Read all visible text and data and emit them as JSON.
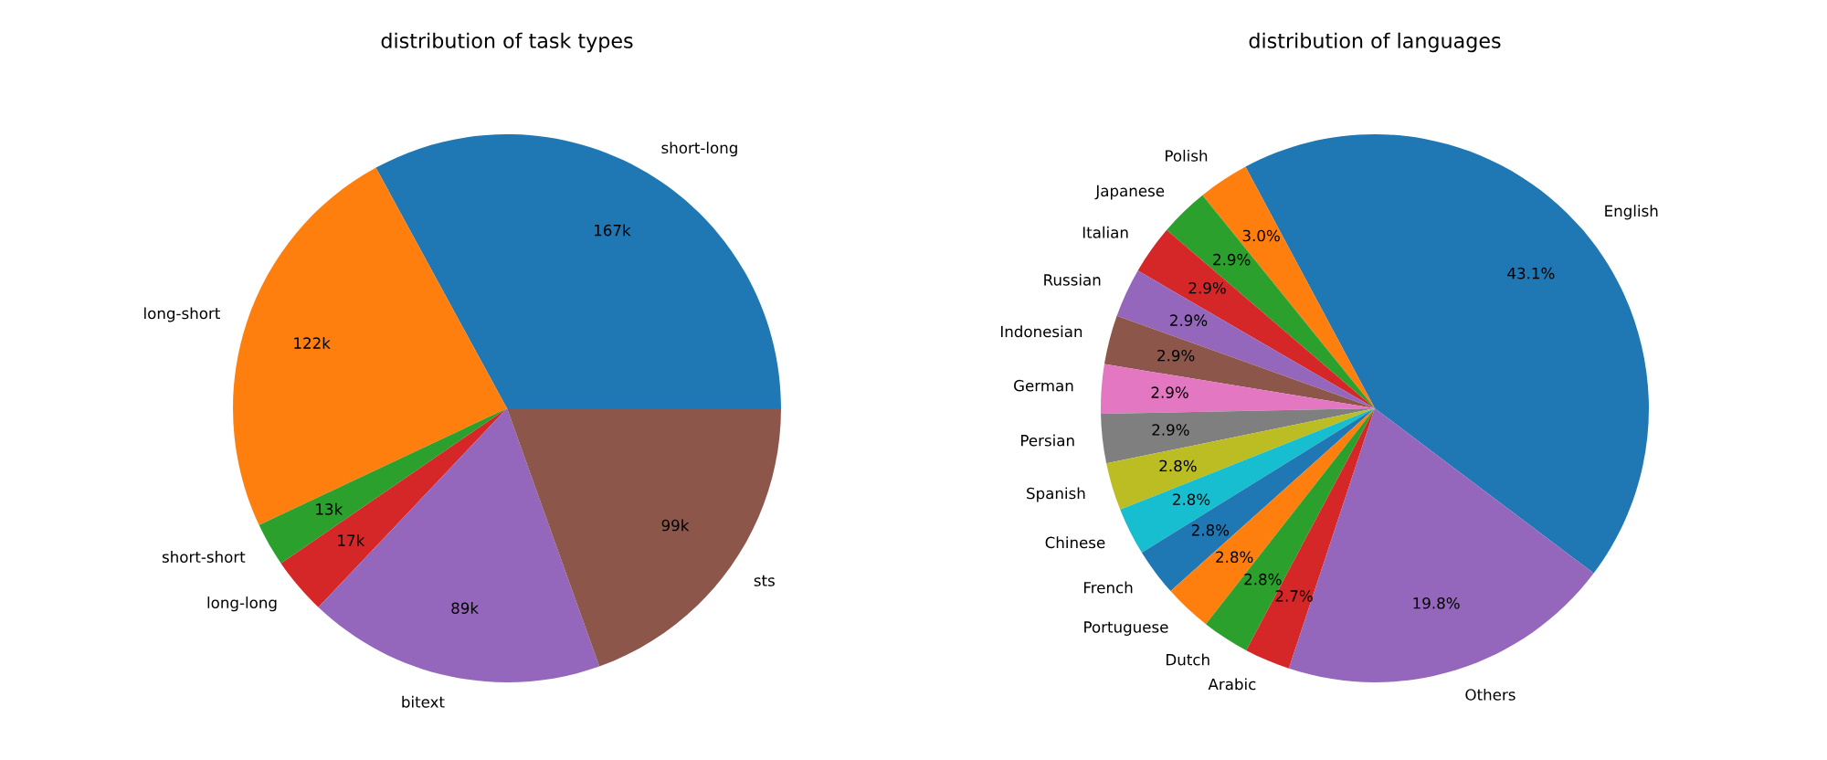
{
  "chart_data": [
    {
      "type": "pie",
      "title": "distribution of task types",
      "categories": [
        "short-long",
        "long-short",
        "short-short",
        "long-long",
        "bitext",
        "sts"
      ],
      "values": [
        167,
        122,
        13,
        17,
        89,
        99
      ],
      "value_labels": [
        "167k",
        "122k",
        "13k",
        "17k",
        "89k",
        "99k"
      ],
      "colors": [
        "#1f77b4",
        "#ff7f0e",
        "#2ca02c",
        "#d62728",
        "#9467bd",
        "#8c564b"
      ]
    },
    {
      "type": "pie",
      "title": "distribution of languages",
      "categories": [
        "English",
        "Polish",
        "Japanese",
        "Italian",
        "Russian",
        "Indonesian",
        "German",
        "Persian",
        "Spanish",
        "Chinese",
        "French",
        "Portuguese",
        "Dutch",
        "Arabic",
        "Others"
      ],
      "values": [
        43.1,
        3.0,
        2.9,
        2.9,
        2.9,
        2.9,
        2.9,
        2.9,
        2.8,
        2.8,
        2.8,
        2.8,
        2.8,
        2.7,
        19.8
      ],
      "value_labels": [
        "43.1%",
        "3.0%",
        "2.9%",
        "2.9%",
        "2.9%",
        "2.9%",
        "2.9%",
        "2.9%",
        "2.8%",
        "2.8%",
        "2.8%",
        "2.8%",
        "2.8%",
        "2.7%",
        "19.8%"
      ],
      "colors": [
        "#1f77b4",
        "#ff7f0e",
        "#2ca02c",
        "#d62728",
        "#9467bd",
        "#8c564b",
        "#e377c2",
        "#7f7f7f",
        "#bcbd22",
        "#17becf",
        "#1f77b4",
        "#ff7f0e",
        "#2ca02c",
        "#d62728",
        "#9467bd"
      ]
    }
  ]
}
